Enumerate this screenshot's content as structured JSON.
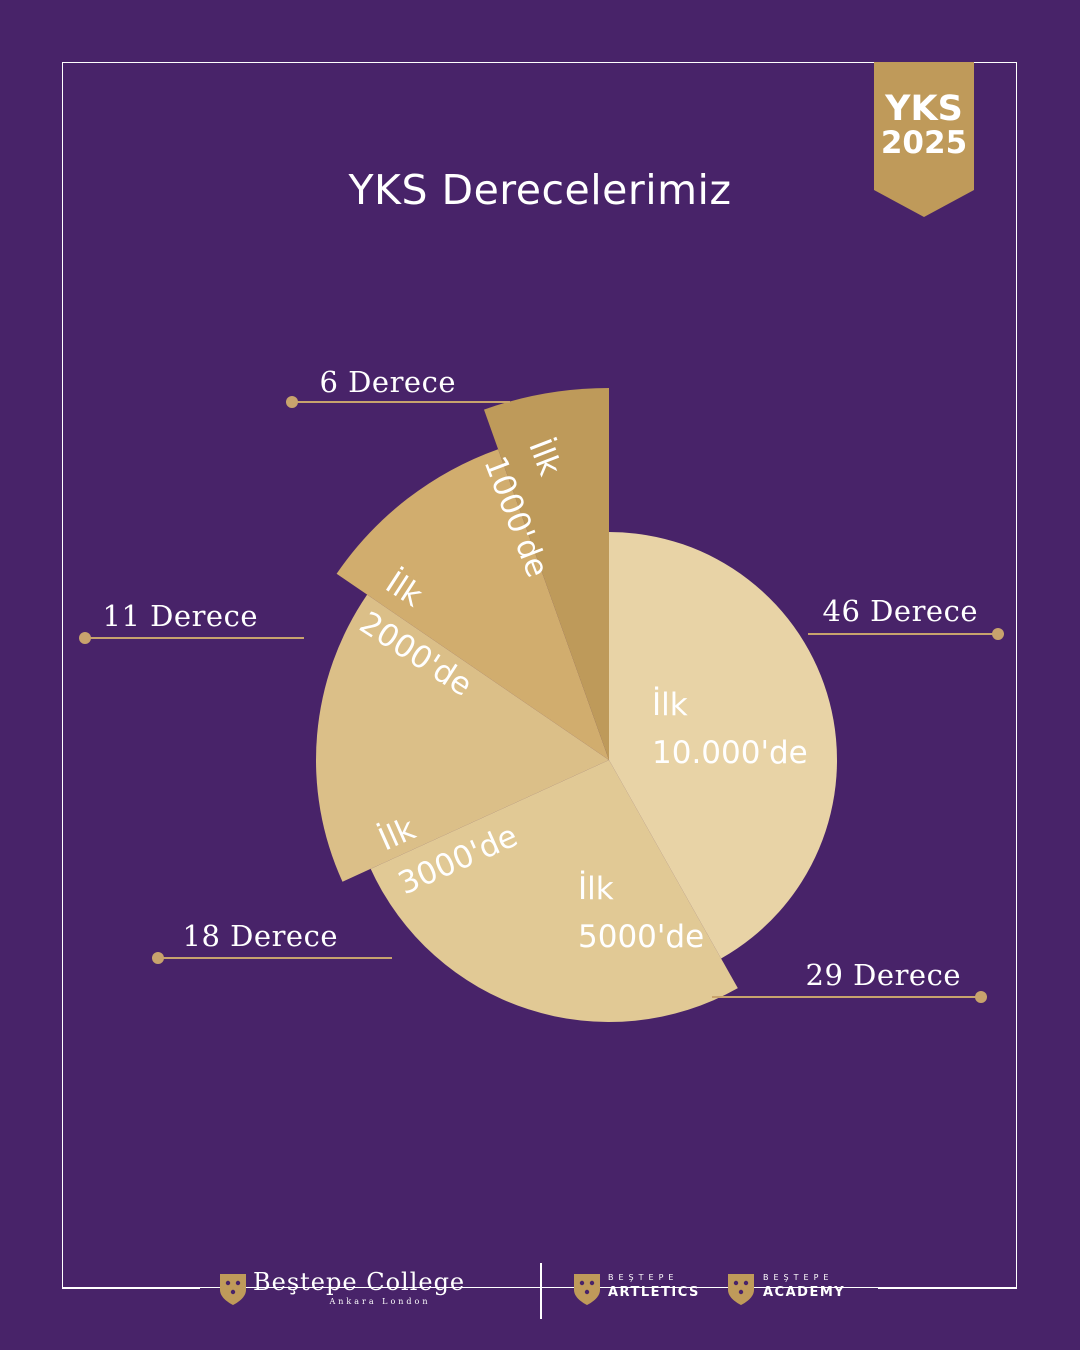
{
  "badge": {
    "line1": "YKS",
    "line2": "2025"
  },
  "title": "YKS Derecelerimiz",
  "colors": {
    "background": "#482369",
    "gold": "#bf9a5a",
    "leader": "#c8a36d"
  },
  "chart_data": {
    "type": "pie",
    "title": "YKS Derecelerimiz",
    "slices": [
      {
        "label_lines": [
          "İlk",
          "10.000'de"
        ],
        "value": 46,
        "value_label": "46 Derece",
        "color": "#e8d3a6"
      },
      {
        "label_lines": [
          "İlk",
          "5000'de"
        ],
        "value": 29,
        "value_label": "29 Derece",
        "color": "#e1c995"
      },
      {
        "label_lines": [
          "İlk",
          "3000'de"
        ],
        "value": 18,
        "value_label": "18 Derece",
        "color": "#dbbf88"
      },
      {
        "label_lines": [
          "İlk",
          "2000'de"
        ],
        "value": 11,
        "value_label": "11 Derece",
        "color": "#d1ad6e"
      },
      {
        "label_lines": [
          "İlk",
          "1000'de"
        ],
        "value": 6,
        "value_label": "6 Derece",
        "color": "#be9a5a"
      }
    ]
  },
  "footer": {
    "college_name": "Beştepe College",
    "college_sub": "Ankara London",
    "artletics_small": "BEŞTEPE",
    "artletics_name": "ARTLETICS",
    "academy_small": "BEŞTEPE",
    "academy_name": "ACADEMY"
  }
}
